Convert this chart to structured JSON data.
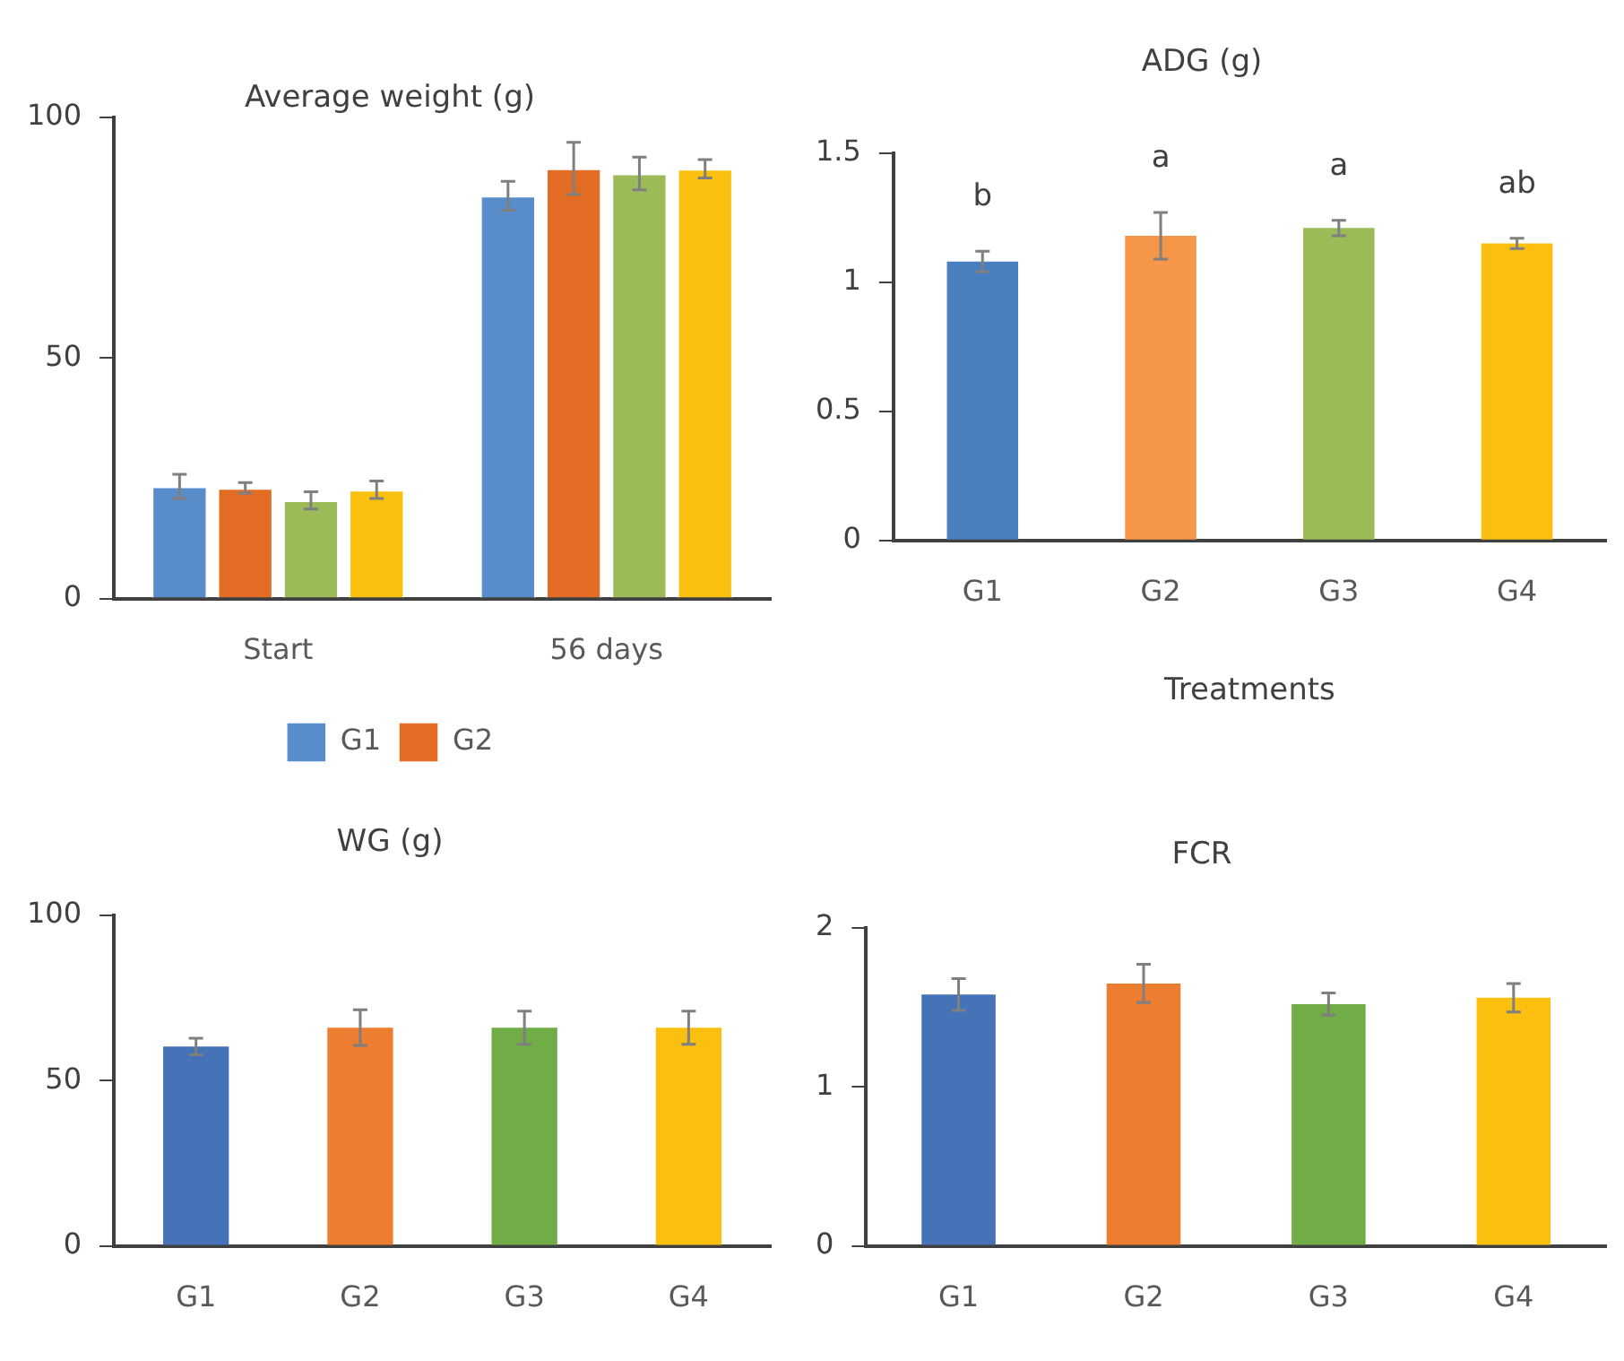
{
  "chart_data": [
    {
      "type": "bar",
      "title": "Average weight (g)",
      "categories": [
        "Start",
        "56 days"
      ],
      "series": [
        {
          "name": "G1",
          "color": "#588ccb",
          "values": [
            23.3,
            83.7
          ],
          "errors": [
            2.5,
            3
          ]
        },
        {
          "name": "G2",
          "color": "#e36c24",
          "values": [
            23.0,
            89.4
          ],
          "errors": [
            1.1,
            5.4
          ]
        },
        {
          "color": "#9bbb59",
          "values": [
            20.4,
            88.3
          ],
          "errors": [
            1.8,
            3.4
          ]
        },
        {
          "color": "#fac010",
          "values": [
            22.6,
            89.3
          ],
          "errors": [
            1.8,
            1.9
          ]
        }
      ],
      "ylim": [
        0,
        100
      ],
      "yticks": [
        0,
        50,
        100
      ],
      "legend": "bottom"
    },
    {
      "type": "bar",
      "title": "ADG (g)",
      "xlabel": "Treatments",
      "categories": [
        "G1",
        "G2",
        "G3",
        "G4"
      ],
      "values": [
        1.08,
        1.18,
        1.21,
        1.15
      ],
      "errors": [
        0.04,
        0.09,
        0.03,
        0.02
      ],
      "colors": [
        "#4a7fbf",
        "#f59648",
        "#9bbb59",
        "#fbbf10"
      ],
      "ylim": [
        0,
        1.5
      ],
      "yticks": [
        0,
        0.5,
        1,
        1.5
      ],
      "annotations": [
        "b",
        "a",
        "a",
        "ab"
      ]
    },
    {
      "type": "bar",
      "title": "WG (g)",
      "categories": [
        "G1",
        "G2",
        "G3",
        "G4"
      ],
      "values": [
        60.3,
        66,
        66,
        66
      ],
      "errors": [
        2.5,
        5.4,
        5,
        5
      ],
      "colors": [
        "#4672b8",
        "#ed7d31",
        "#70ad47",
        "#fbbf10"
      ],
      "ylim": [
        0,
        100
      ],
      "yticks": [
        0,
        50,
        100
      ]
    },
    {
      "type": "bar",
      "title": "FCR",
      "categories": [
        "G1",
        "G2",
        "G3",
        "G4"
      ],
      "values": [
        1.58,
        1.65,
        1.52,
        1.56
      ],
      "errors": [
        0.1,
        0.12,
        0.07,
        0.09
      ],
      "colors": [
        "#4672b8",
        "#ed7d31",
        "#70ad47",
        "#fbbf10"
      ],
      "ylim": [
        0,
        2
      ],
      "yticks": [
        0,
        1,
        2
      ]
    }
  ]
}
